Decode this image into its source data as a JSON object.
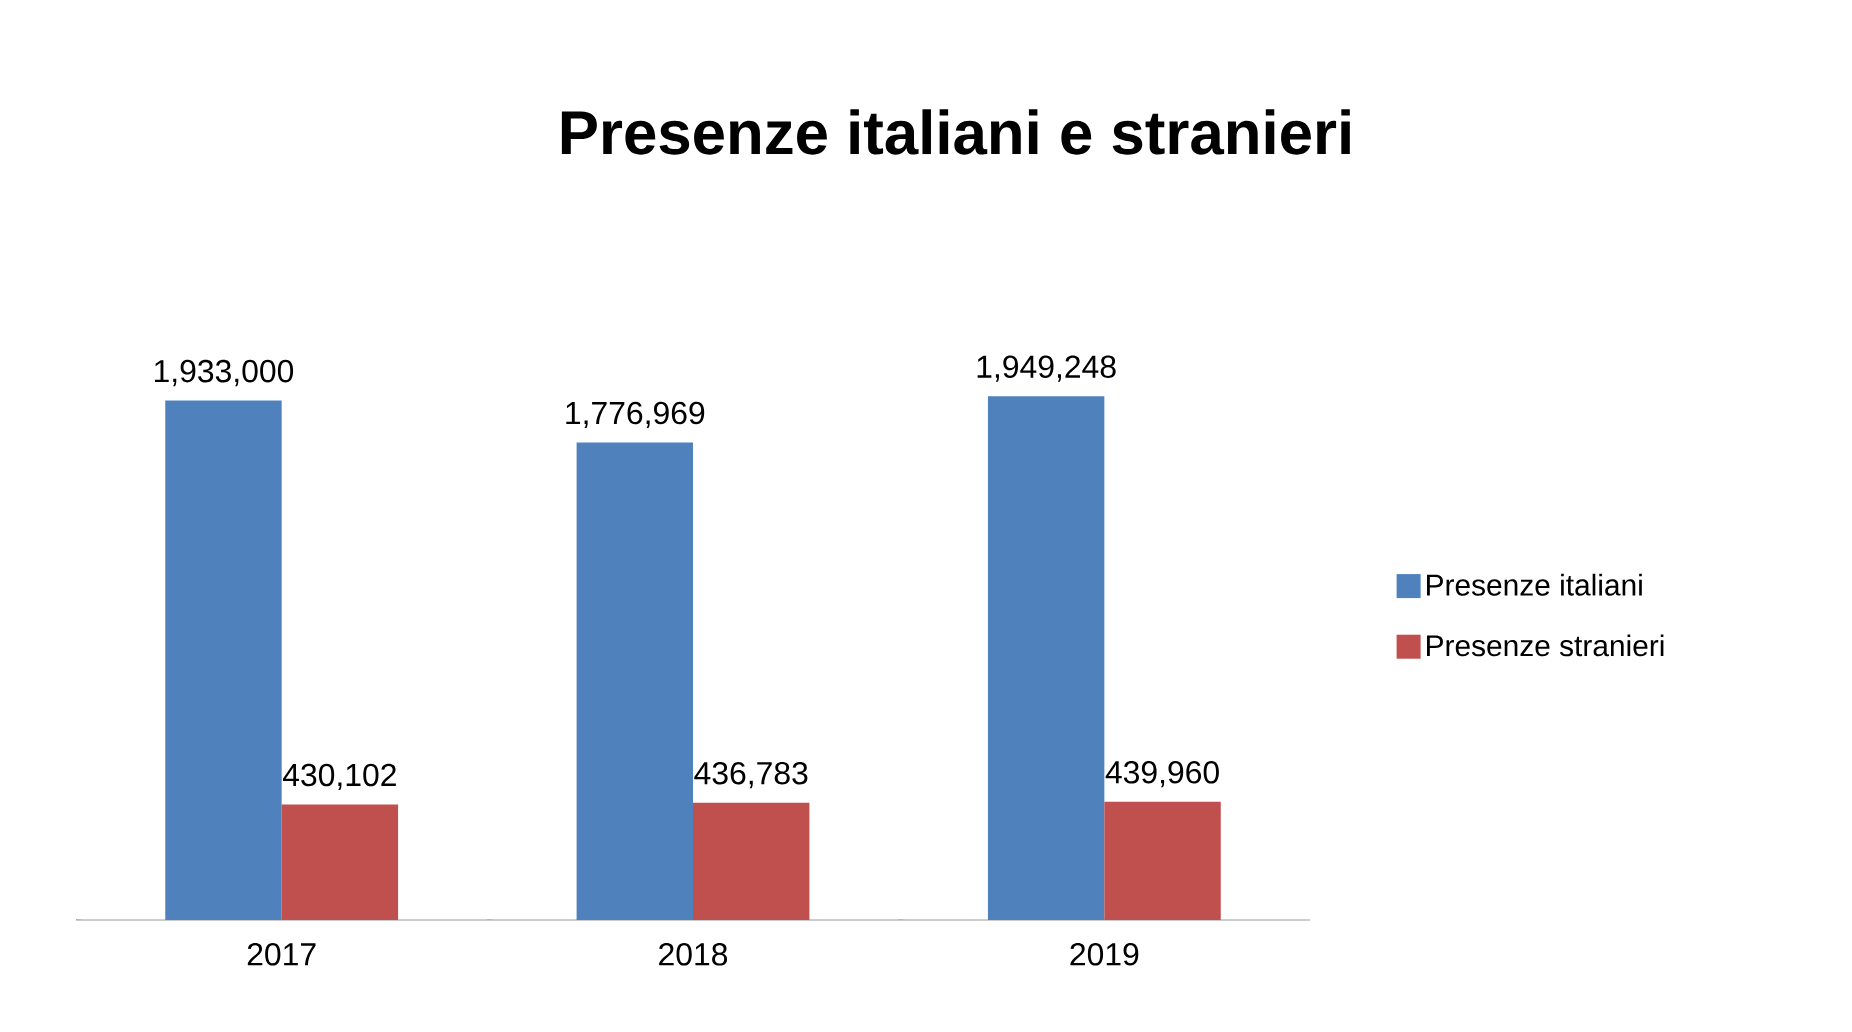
{
  "chart_data": {
    "type": "bar",
    "title": "Presenze italiani e stranieri",
    "categories": [
      "2017",
      "2018",
      "2019"
    ],
    "series": [
      {
        "name": "Presenze italiani",
        "color": "#4f81bd",
        "values": [
          1933000,
          1776969,
          1949248
        ],
        "value_labels": [
          "1,933,000",
          "1,776,969",
          "1,949,248"
        ]
      },
      {
        "name": "Presenze stranieri",
        "color": "#c0504d",
        "values": [
          430102,
          436783,
          439960
        ],
        "value_labels": [
          "430,102",
          "436,783",
          "439,960"
        ]
      }
    ],
    "legend": "right"
  }
}
